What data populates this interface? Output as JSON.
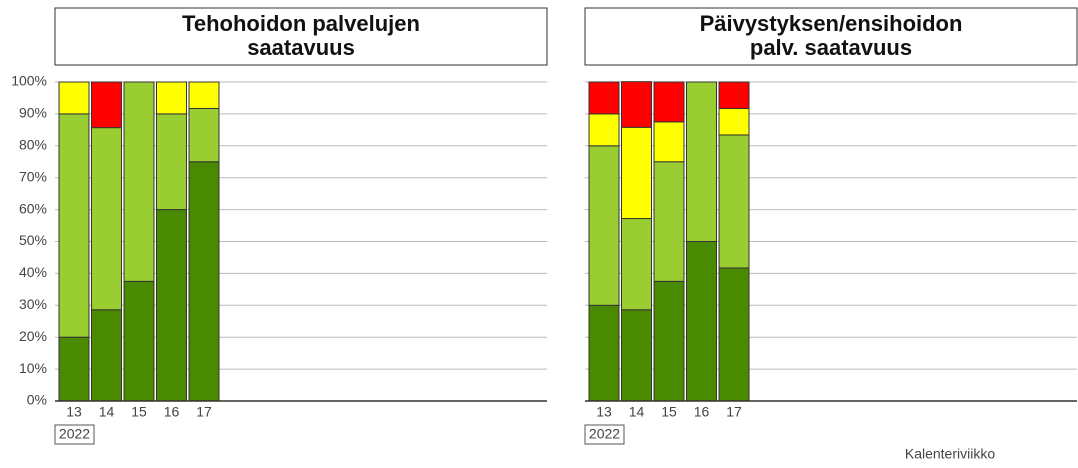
{
  "chart_data": [
    {
      "type": "stacked_bar",
      "title": [
        "Tehohoidon palvelujen",
        "saatavuus"
      ],
      "categories": [
        "13",
        "14",
        "15",
        "16",
        "17"
      ],
      "year_label": "2022",
      "ylim": [
        0,
        100
      ],
      "yticks": [
        {
          "value": 0,
          "label": "0%"
        },
        {
          "value": 10,
          "label": "10%"
        },
        {
          "value": 20,
          "label": "20%"
        },
        {
          "value": 30,
          "label": "30%"
        },
        {
          "value": 40,
          "label": "40%"
        },
        {
          "value": 50,
          "label": "50%"
        },
        {
          "value": 60,
          "label": "60%"
        },
        {
          "value": 70,
          "label": "70%"
        },
        {
          "value": 80,
          "label": "80%"
        },
        {
          "value": 90,
          "label": "90%"
        },
        {
          "value": 100,
          "label": "100%"
        }
      ],
      "grid": true,
      "series": [
        {
          "color": "#4a8a00",
          "values": [
            20,
            28.6,
            37.5,
            60,
            75
          ]
        },
        {
          "color": "#9acd32",
          "values": [
            70,
            57.1,
            62.5,
            30,
            16.7
          ]
        },
        {
          "color": "#ffff00",
          "values": [
            10,
            0,
            0,
            10,
            8.3
          ]
        },
        {
          "color": "#ff0000",
          "values": [
            0,
            14.3,
            0,
            0,
            0
          ]
        }
      ]
    },
    {
      "type": "stacked_bar",
      "title": [
        "Päivystyksen/ensihoidon",
        "palv. saatavuus"
      ],
      "categories": [
        "13",
        "14",
        "15",
        "16",
        "17"
      ],
      "year_label": "2022",
      "xlabel": "Kalenteriviikko",
      "ylim": [
        0,
        100
      ],
      "yticks": [
        0,
        10,
        20,
        30,
        40,
        50,
        60,
        70,
        80,
        90,
        100
      ],
      "grid": true,
      "series": [
        {
          "color": "#4a8a00",
          "values": [
            30,
            28.6,
            37.5,
            50,
            41.7
          ]
        },
        {
          "color": "#9acd32",
          "values": [
            50,
            28.6,
            37.5,
            50,
            41.7
          ]
        },
        {
          "color": "#ffff00",
          "values": [
            10,
            28.6,
            12.5,
            0,
            8.3
          ]
        },
        {
          "color": "#ff0000",
          "values": [
            10,
            14.3,
            12.5,
            0,
            8.3
          ]
        }
      ]
    }
  ]
}
